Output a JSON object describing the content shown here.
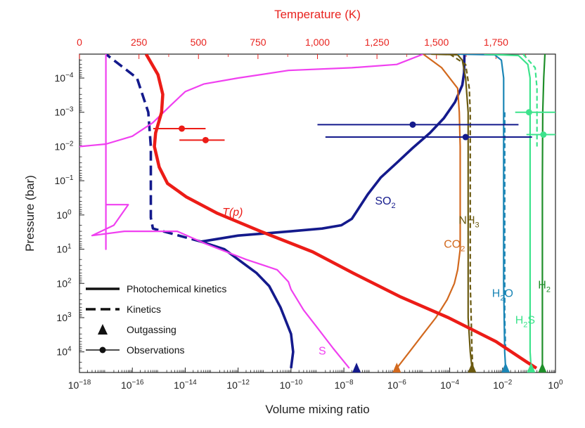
{
  "chart_data": {
    "type": "line",
    "xlabel": "Volume mixing ratio",
    "x2label": "Temperature (K)",
    "ylabel": "Pressure (bar)",
    "xscale": "log",
    "yscale": "log",
    "xlim": [
      1e-18,
      1
    ],
    "x2lim": [
      0,
      2000
    ],
    "ylim": [
      2e-05,
      40000
    ],
    "y_inverted": true,
    "x_ticks": [
      {
        "b": "10",
        "e": "−18",
        "v": 1e-18
      },
      {
        "b": "10",
        "e": "−16",
        "v": 1e-16
      },
      {
        "b": "10",
        "e": "−14",
        "v": 1e-14
      },
      {
        "b": "10",
        "e": "−12",
        "v": 1e-12
      },
      {
        "b": "10",
        "e": "−10",
        "v": 1e-10
      },
      {
        "b": "10",
        "e": "−8",
        "v": 1e-08
      },
      {
        "b": "10",
        "e": "−6",
        "v": 1e-06
      },
      {
        "b": "10",
        "e": "−4",
        "v": 0.0001
      },
      {
        "b": "10",
        "e": "−2",
        "v": 0.01
      },
      {
        "b": "10",
        "e": "0",
        "v": 1
      }
    ],
    "x2_ticks": [
      "0",
      "250",
      "500",
      "750",
      "1,000",
      "1,250",
      "1,500",
      "1,750"
    ],
    "y_ticks": [
      {
        "b": "10",
        "e": "−4",
        "v": 0.0001
      },
      {
        "b": "10",
        "e": "−3",
        "v": 0.001
      },
      {
        "b": "10",
        "e": "−2",
        "v": 0.01
      },
      {
        "b": "10",
        "e": "−1",
        "v": 0.1
      },
      {
        "b": "10",
        "e": "0",
        "v": 1
      },
      {
        "b": "10",
        "e": "1",
        "v": 10
      },
      {
        "b": "10",
        "e": "2",
        "v": 100
      },
      {
        "b": "10",
        "e": "3",
        "v": 1000
      },
      {
        "b": "10",
        "e": "4",
        "v": 10000
      }
    ],
    "series": [
      {
        "name": "SO2 (photochemical kinetics)",
        "label": "SO",
        "sub": "2",
        "color": "#141a8c",
        "style": "solid",
        "axis": "vmr",
        "label_at": [
          1.5e-07,
          0.5
        ],
        "points": [
          [
            1e-10,
            30000
          ],
          [
            1.2e-10,
            10000
          ],
          [
            1e-10,
            3000
          ],
          [
            4e-11,
            500
          ],
          [
            1.5e-11,
            120
          ],
          [
            5e-12,
            50
          ],
          [
            3e-13,
            10
          ],
          [
            4e-14,
            6
          ],
          [
            1e-12,
            4
          ],
          [
            1e-10,
            3
          ],
          [
            1.5e-09,
            2.5
          ],
          [
            8e-09,
            2
          ],
          [
            2e-08,
            1.3
          ],
          [
            3e-08,
            0.8
          ],
          [
            8e-08,
            0.25
          ],
          [
            2.5e-07,
            0.08
          ],
          [
            1e-06,
            0.03
          ],
          [
            4e-06,
            0.011
          ],
          [
            1.8e-05,
            0.004
          ],
          [
            6e-05,
            0.0015
          ],
          [
            0.00016,
            0.0005
          ],
          [
            0.0003,
            0.00016
          ],
          [
            0.00035,
            7e-05
          ],
          [
            0.00036,
            2e-05
          ]
        ]
      },
      {
        "name": "SO2 (kinetics)",
        "color": "#141a8c",
        "style": "dashed",
        "axis": "vmr",
        "points": [
          [
            4e-14,
            6
          ],
          [
            6e-16,
            2.5
          ],
          [
            5e-16,
            1.2
          ],
          [
            5e-16,
            0.3
          ],
          [
            5e-16,
            0.01
          ],
          [
            4e-16,
            0.001
          ],
          [
            1.5e-16,
            0.0001
          ],
          [
            1e-17,
            2e-05
          ]
        ]
      },
      {
        "name": "S",
        "label": "S",
        "color": "#f040f0",
        "style": "solid",
        "axis": "vmr",
        "label_at": [
          1.1e-09,
          12000
        ],
        "points": [
          [
            1e-17,
            2e-05
          ],
          [
            1e-17,
            10
          ],
          [
            1e-17,
            2
          ],
          [
            1e-17,
            0.5
          ],
          [
            7e-17,
            0.5
          ],
          [
            2e-17,
            2
          ],
          [
            3e-18,
            4
          ],
          [
            5e-17,
            3
          ],
          [
            3e-16,
            3
          ],
          [
            5e-15,
            3
          ],
          [
            6e-14,
            7
          ],
          [
            2e-12,
            20
          ],
          [
            3e-11,
            40
          ],
          [
            8e-11,
            90
          ],
          [
            1e-10,
            150
          ],
          [
            3e-10,
            600
          ],
          [
            1e-09,
            2000
          ],
          [
            4e-09,
            8000
          ],
          [
            1.6e-08,
            30000
          ]
        ]
      },
      {
        "name": "S (upper)",
        "color": "#f040f0",
        "style": "solid",
        "axis": "vmr",
        "points": [
          [
            1e-18,
            0.01
          ],
          [
            1e-17,
            0.0085
          ],
          [
            1e-16,
            0.005
          ],
          [
            6e-16,
            0.002
          ],
          [
            3e-15,
            0.0006
          ],
          [
            1e-14,
            0.00025
          ],
          [
            5e-14,
            0.00015
          ],
          [
            1e-12,
            0.0001
          ],
          [
            8e-11,
            6e-05
          ],
          [
            2e-08,
            5e-05
          ],
          [
            1e-06,
            4e-05
          ],
          [
            1e-05,
            2e-05
          ]
        ]
      },
      {
        "name": "NH3",
        "label": "NH",
        "sub": "3",
        "color": "#6b5a10",
        "style": "solid",
        "axis": "vmr",
        "label_at": [
          0.00022,
          1.8
        ],
        "points": [
          [
            2e-05,
            2e-05
          ],
          [
            0.0002,
            2.1e-05
          ],
          [
            0.0003,
            3e-05
          ],
          [
            0.0004,
            0.0001
          ],
          [
            0.0005,
            0.001
          ],
          [
            0.0005,
            0.01
          ],
          [
            0.0005,
            0.1
          ],
          [
            0.0005,
            1
          ],
          [
            0.0005,
            10
          ],
          [
            0.0005,
            100
          ],
          [
            0.0005,
            1000
          ],
          [
            0.0006,
            10000
          ],
          [
            0.0007,
            30000
          ]
        ]
      },
      {
        "name": "NH3 (kinetics)",
        "color": "#6b5a10",
        "style": "dashed",
        "axis": "vmr",
        "points": [
          [
            0.0001,
            2e-05
          ],
          [
            0.0004,
            4e-05
          ],
          [
            0.00055,
            0.0002
          ],
          [
            0.0006,
            0.001
          ],
          [
            0.0006,
            0.01
          ],
          [
            0.0006,
            1
          ],
          [
            0.0006,
            100
          ],
          [
            0.00065,
            1000
          ],
          [
            0.0007,
            10000
          ],
          [
            0.00075,
            30000
          ]
        ]
      },
      {
        "name": "CO2",
        "label": "CO",
        "sub": "2",
        "color": "#d2691e",
        "style": "solid",
        "axis": "vmr",
        "label_at": [
          6e-05,
          9
        ],
        "points": [
          [
            1e-06,
            30000
          ],
          [
            3e-06,
            10000
          ],
          [
            1e-05,
            3000
          ],
          [
            3e-05,
            1000
          ],
          [
            8e-05,
            300
          ],
          [
            0.00015,
            100
          ],
          [
            0.0002,
            40
          ],
          [
            0.00025,
            10
          ],
          [
            0.00025,
            1
          ],
          [
            0.00025,
            0.1
          ],
          [
            0.00025,
            0.01
          ],
          [
            0.00023,
            0.001
          ],
          [
            0.0002,
            0.0002
          ],
          [
            5e-05,
            5e-05
          ],
          [
            1e-05,
            2e-05
          ]
        ]
      },
      {
        "name": "H2O",
        "label": "H",
        "sub": "2",
        "label_tail": "O",
        "color": "#1b86b6",
        "style": "solid",
        "axis": "vmr",
        "label_at": [
          0.004,
          250
        ],
        "points": [
          [
            0.0002,
            2e-05
          ],
          [
            0.005,
            2.1e-05
          ],
          [
            0.009,
            3e-05
          ],
          [
            0.011,
            0.0001
          ],
          [
            0.011,
            0.01
          ],
          [
            0.011,
            1
          ],
          [
            0.011,
            100
          ],
          [
            0.012,
            10000
          ],
          [
            0.013,
            30000
          ]
        ]
      },
      {
        "name": "H2O (kinetics)",
        "color": "#1b86b6",
        "style": "dashed",
        "axis": "vmr",
        "points": [
          [
            0.012,
            0.001
          ],
          [
            0.012,
            1000
          ],
          [
            0.013,
            10000
          ]
        ]
      },
      {
        "name": "H2S",
        "label": "H",
        "sub": "2",
        "label_tail": "S",
        "color": "#3de38c",
        "style": "solid",
        "axis": "vmr",
        "label_at": [
          0.03,
          1500
        ],
        "points": [
          [
            0.002,
            2e-05
          ],
          [
            0.04,
            2.2e-05
          ],
          [
            0.09,
            4e-05
          ],
          [
            0.11,
            0.0001
          ],
          [
            0.11,
            0.01
          ],
          [
            0.11,
            1
          ],
          [
            0.11,
            100
          ],
          [
            0.11,
            10000
          ],
          [
            0.12,
            30000
          ]
        ]
      },
      {
        "name": "H2S (kinetics)",
        "color": "#3de38c",
        "style": "dashed",
        "axis": "vmr",
        "points": [
          [
            0.06,
            2e-05
          ],
          [
            0.17,
            5e-05
          ],
          [
            0.2,
            0.0002
          ],
          [
            0.2,
            0.01
          ]
        ]
      },
      {
        "name": "H2",
        "label": "H",
        "sub": "2",
        "color": "#1f8f2a",
        "style": "solid",
        "axis": "vmr",
        "label_at": [
          0.22,
          140
        ],
        "points": [
          [
            0.4,
            2e-05
          ],
          [
            0.36,
            0.0001
          ],
          [
            0.33,
            0.001
          ],
          [
            0.32,
            0.1
          ],
          [
            0.32,
            10
          ],
          [
            0.32,
            1000
          ],
          [
            0.32,
            30000
          ]
        ]
      },
      {
        "name": "T(p)",
        "label": "T(p)",
        "color": "#ec1c17",
        "style": "solid",
        "axis": "temperature",
        "label_at": [
          600,
          1.05
        ],
        "points": [
          [
            280,
            2e-05
          ],
          [
            330,
            8e-05
          ],
          [
            350,
            0.0003
          ],
          [
            345,
            0.001
          ],
          [
            320,
            0.004
          ],
          [
            315,
            0.01
          ],
          [
            335,
            0.04
          ],
          [
            370,
            0.12
          ],
          [
            450,
            0.3
          ],
          [
            580,
            0.9
          ],
          [
            760,
            3
          ],
          [
            980,
            12
          ],
          [
            1150,
            50
          ],
          [
            1350,
            250
          ],
          [
            1550,
            1000
          ],
          [
            1750,
            5000
          ],
          [
            1880,
            20000
          ],
          [
            1920,
            30000
          ]
        ]
      }
    ],
    "observations": [
      {
        "axis": "temperature",
        "color": "#ec1c17",
        "x": 430,
        "xmin": 310,
        "xmax": 530,
        "pressure": 0.003
      },
      {
        "axis": "temperature",
        "color": "#ec1c17",
        "x": 530,
        "xmin": 420,
        "xmax": 610,
        "pressure": 0.0065
      },
      {
        "axis": "vmr",
        "color": "#141a8c",
        "x": 4e-06,
        "xmin": 1e-09,
        "xmax": 0.04,
        "pressure": 0.0023
      },
      {
        "axis": "vmr",
        "color": "#141a8c",
        "x": 0.0004,
        "xmin": 2e-09,
        "xmax": 0.13,
        "pressure": 0.0053
      },
      {
        "axis": "vmr",
        "color": "#3de38c",
        "x": 0.1,
        "xmin": 0.03,
        "xmax": 1,
        "pressure": 0.001
      },
      {
        "axis": "vmr",
        "color": "#3de38c",
        "x": 0.35,
        "xmin": 0.08,
        "xmax": 1,
        "pressure": 0.0045
      }
    ],
    "outgassing": [
      {
        "x": 3e-08,
        "color": "#141a8c"
      },
      {
        "x": 1e-06,
        "color": "#d2691e"
      },
      {
        "x": 0.0007,
        "color": "#6b5a10"
      },
      {
        "x": 0.013,
        "color": "#1b86b6"
      },
      {
        "x": 0.12,
        "color": "#3de38c"
      },
      {
        "x": 0.32,
        "color": "#1f8f2a"
      }
    ],
    "legend": {
      "position": "bottom-left",
      "entries": [
        "Photochemical kinetics",
        "Kinetics",
        "Outgassing",
        "Observations"
      ]
    }
  }
}
